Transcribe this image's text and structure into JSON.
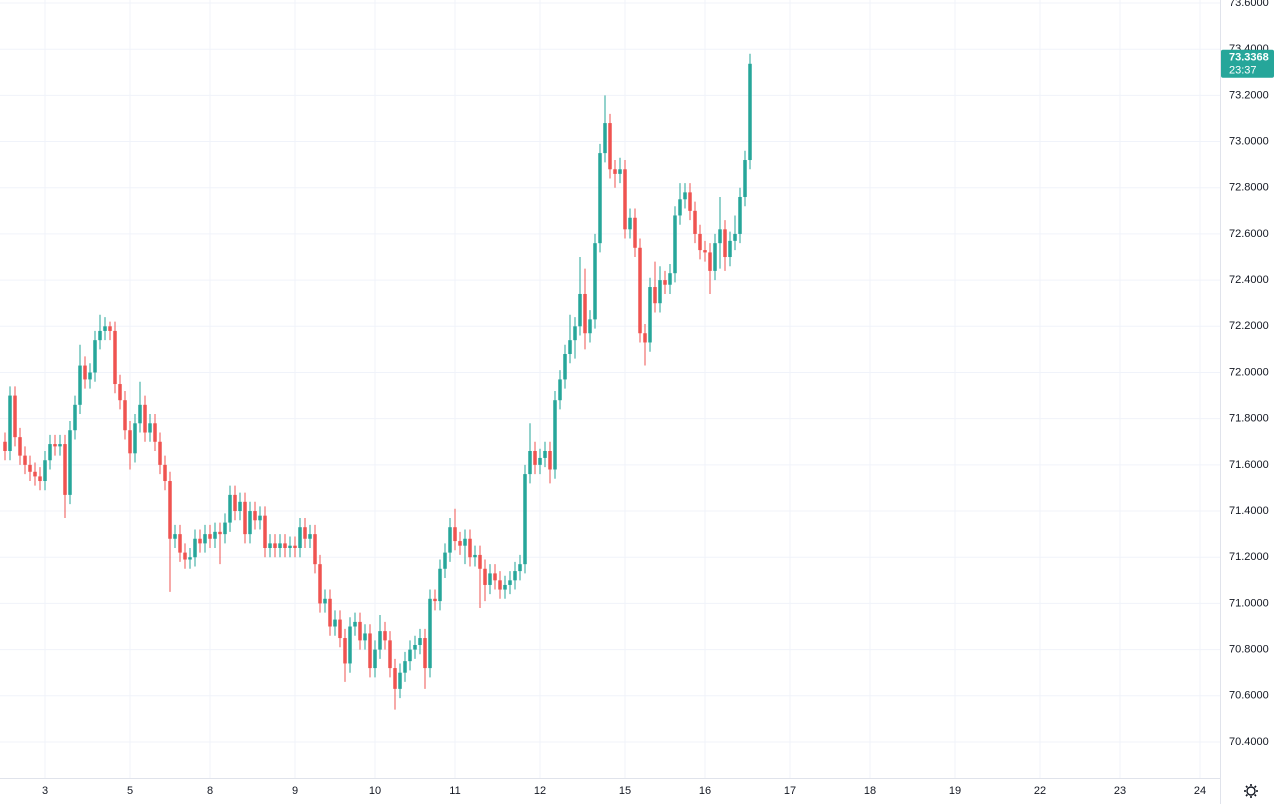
{
  "chart_data": {
    "type": "candlestick",
    "up_color": "#26a69a",
    "down_color": "#ef5350",
    "grid": true,
    "categories": [
      null,
      null,
      null,
      null,
      null,
      null,
      null,
      null,
      null,
      null,
      null,
      null,
      null,
      null,
      null,
      null,
      null,
      null,
      null,
      null,
      null,
      null,
      null,
      null,
      null,
      null,
      null,
      null,
      null,
      null,
      null,
      null,
      null,
      null,
      null,
      null,
      null,
      null,
      null,
      null,
      null,
      null,
      null,
      null,
      null,
      null,
      null,
      null,
      null,
      null,
      null,
      null,
      null,
      null,
      null,
      null,
      null,
      null,
      null,
      null,
      null,
      null,
      null,
      null,
      null,
      null,
      null,
      null,
      null,
      null,
      null,
      null,
      null,
      null,
      null,
      null,
      null,
      null,
      null,
      null,
      null,
      null,
      null,
      null,
      null,
      null,
      null,
      null,
      null,
      null,
      null,
      null,
      null,
      null,
      null,
      null,
      null,
      null,
      null,
      null,
      null,
      null,
      null,
      null,
      null,
      null,
      null,
      null,
      null,
      null,
      null,
      null,
      null,
      null,
      null,
      null,
      null,
      null,
      null,
      null,
      null,
      null,
      null,
      null,
      null,
      null,
      null,
      null,
      null,
      null,
      null,
      null,
      null,
      null,
      null,
      null,
      null,
      null,
      null,
      null,
      null,
      null,
      null,
      null,
      null,
      null,
      null,
      null,
      null,
      null
    ],
    "open": [
      71.7,
      71.66,
      71.9,
      71.72,
      71.64,
      71.6,
      71.57,
      71.55,
      71.53,
      71.62,
      71.69,
      71.68,
      71.69,
      71.47,
      71.75,
      71.86,
      72.03,
      71.97,
      72.0,
      72.14,
      72.18,
      72.2,
      72.18,
      71.95,
      71.88,
      71.75,
      71.65,
      71.78,
      71.86,
      71.74,
      71.78,
      71.7,
      71.6,
      71.53,
      71.28,
      71.3,
      71.22,
      71.19,
      71.2,
      71.28,
      71.26,
      71.3,
      71.28,
      71.31,
      71.3,
      71.35,
      71.47,
      71.4,
      71.44,
      71.3,
      71.4,
      71.36,
      71.38,
      71.24,
      71.26,
      71.24,
      71.26,
      71.24,
      71.25,
      71.24,
      71.33,
      71.28,
      71.3,
      71.17,
      71.0,
      71.02,
      70.9,
      70.93,
      70.85,
      70.74,
      70.9,
      70.92,
      70.84,
      70.87,
      70.72,
      70.8,
      70.88,
      70.84,
      70.72,
      70.63,
      70.7,
      70.75,
      70.8,
      70.82,
      70.85,
      70.72,
      71.02,
      71.01,
      71.15,
      71.22,
      71.33,
      71.27,
      71.25,
      71.28,
      71.2,
      71.21,
      71.15,
      71.08,
      71.13,
      71.1,
      71.06,
      71.08,
      71.1,
      71.14,
      71.17,
      71.56,
      71.66,
      71.6,
      71.63,
      71.66,
      71.58,
      71.88,
      71.97,
      72.08,
      72.14,
      72.2,
      72.34,
      72.17,
      72.23,
      72.56,
      72.95,
      73.08,
      72.88,
      72.86,
      72.88,
      72.62,
      72.67,
      72.54,
      72.17,
      72.13,
      72.37,
      72.3,
      72.4,
      72.38,
      72.43,
      72.68,
      72.75,
      72.78,
      72.7,
      72.6,
      72.53,
      72.52,
      72.44,
      72.56,
      72.62,
      72.5,
      72.57,
      72.6,
      72.76,
      72.92
    ],
    "high": [
      71.74,
      71.94,
      71.94,
      71.76,
      71.68,
      71.64,
      71.61,
      71.59,
      71.66,
      71.73,
      71.73,
      71.73,
      71.73,
      71.79,
      71.9,
      72.12,
      72.07,
      72.04,
      72.18,
      72.25,
      72.24,
      72.22,
      72.22,
      71.99,
      71.92,
      71.79,
      71.82,
      71.96,
      71.9,
      71.82,
      71.82,
      71.74,
      71.64,
      71.57,
      71.34,
      71.34,
      71.26,
      71.24,
      71.32,
      71.32,
      71.34,
      71.34,
      71.35,
      71.35,
      71.39,
      71.51,
      71.51,
      71.48,
      71.48,
      71.44,
      71.44,
      71.42,
      71.42,
      71.3,
      71.3,
      71.3,
      71.3,
      71.29,
      71.29,
      71.37,
      71.37,
      71.34,
      71.34,
      71.21,
      71.06,
      71.06,
      70.97,
      70.97,
      70.89,
      70.94,
      70.96,
      70.96,
      70.91,
      70.91,
      70.84,
      70.95,
      70.92,
      70.88,
      70.76,
      70.74,
      70.79,
      70.84,
      70.86,
      70.89,
      70.89,
      71.06,
      71.06,
      71.19,
      71.26,
      71.37,
      71.41,
      71.31,
      71.32,
      71.32,
      71.25,
      71.25,
      71.19,
      71.17,
      71.17,
      71.14,
      71.12,
      71.14,
      71.18,
      71.21,
      71.6,
      71.78,
      71.7,
      71.67,
      71.7,
      71.7,
      71.92,
      72.01,
      72.12,
      72.25,
      72.24,
      72.5,
      72.45,
      72.27,
      72.6,
      72.99,
      73.2,
      73.12,
      72.92,
      72.93,
      72.92,
      72.71,
      72.71,
      72.58,
      72.21,
      72.41,
      72.48,
      72.46,
      72.44,
      72.47,
      72.72,
      72.82,
      72.82,
      72.82,
      72.74,
      72.64,
      72.57,
      72.56,
      72.6,
      72.76,
      72.66,
      72.61,
      72.68,
      72.8,
      72.96,
      73.38
    ],
    "low": [
      71.62,
      71.62,
      71.68,
      71.6,
      71.56,
      71.53,
      71.51,
      71.49,
      71.49,
      71.58,
      71.64,
      71.64,
      71.37,
      71.43,
      71.71,
      71.82,
      71.93,
      71.93,
      71.96,
      72.1,
      72.14,
      72.14,
      71.91,
      71.84,
      71.71,
      71.58,
      71.61,
      71.74,
      71.7,
      71.7,
      71.66,
      71.56,
      71.49,
      71.05,
      71.24,
      71.18,
      71.15,
      71.15,
      71.16,
      71.22,
      71.22,
      71.24,
      71.24,
      71.17,
      71.26,
      71.31,
      71.36,
      71.36,
      71.26,
      71.26,
      71.32,
      71.32,
      71.2,
      71.2,
      71.2,
      71.2,
      71.2,
      71.2,
      71.2,
      71.2,
      71.24,
      71.24,
      71.13,
      70.96,
      70.96,
      70.86,
      70.86,
      70.81,
      70.66,
      70.7,
      70.86,
      70.8,
      70.8,
      70.68,
      70.68,
      70.76,
      70.8,
      70.68,
      70.54,
      70.59,
      70.66,
      70.71,
      70.76,
      70.78,
      70.63,
      70.68,
      70.97,
      70.97,
      71.11,
      71.18,
      71.23,
      71.21,
      71.17,
      71.16,
      71.16,
      70.98,
      71.01,
      71.04,
      71.06,
      71.02,
      71.02,
      71.04,
      71.06,
      71.1,
      71.13,
      71.52,
      71.56,
      71.56,
      71.59,
      71.52,
      71.54,
      71.84,
      71.93,
      72.04,
      72.06,
      72.16,
      72.1,
      72.13,
      72.19,
      72.52,
      72.91,
      72.84,
      72.8,
      72.82,
      72.58,
      72.58,
      72.5,
      72.13,
      72.03,
      72.09,
      72.26,
      72.26,
      72.34,
      72.34,
      72.39,
      72.64,
      72.71,
      72.66,
      72.56,
      72.49,
      72.48,
      72.34,
      72.4,
      72.45,
      72.44,
      72.46,
      72.53,
      72.56,
      72.72,
      72.88
    ],
    "close": [
      71.66,
      71.9,
      71.72,
      71.64,
      71.6,
      71.57,
      71.55,
      71.53,
      71.62,
      71.69,
      71.68,
      71.69,
      71.47,
      71.75,
      71.86,
      72.03,
      71.97,
      72.0,
      72.14,
      72.18,
      72.2,
      72.18,
      71.95,
      71.88,
      71.75,
      71.65,
      71.78,
      71.86,
      71.74,
      71.78,
      71.7,
      71.6,
      71.53,
      71.28,
      71.3,
      71.22,
      71.19,
      71.2,
      71.28,
      71.26,
      71.3,
      71.28,
      71.31,
      71.3,
      71.35,
      71.47,
      71.4,
      71.44,
      71.3,
      71.4,
      71.36,
      71.38,
      71.24,
      71.26,
      71.24,
      71.26,
      71.24,
      71.25,
      71.24,
      71.33,
      71.28,
      71.3,
      71.17,
      71.0,
      71.02,
      70.9,
      70.93,
      70.85,
      70.74,
      70.9,
      70.92,
      70.84,
      70.87,
      70.72,
      70.8,
      70.88,
      70.84,
      70.72,
      70.63,
      70.7,
      70.75,
      70.8,
      70.82,
      70.85,
      70.72,
      71.02,
      71.01,
      71.15,
      71.22,
      71.33,
      71.27,
      71.25,
      71.28,
      71.2,
      71.21,
      71.15,
      71.08,
      71.13,
      71.1,
      71.06,
      71.08,
      71.1,
      71.14,
      71.17,
      71.56,
      71.66,
      71.6,
      71.63,
      71.66,
      71.58,
      71.88,
      71.97,
      72.08,
      72.14,
      72.2,
      72.34,
      72.17,
      72.23,
      72.56,
      72.95,
      73.08,
      72.88,
      72.86,
      72.88,
      72.62,
      72.67,
      72.54,
      72.17,
      72.13,
      72.37,
      72.3,
      72.4,
      72.38,
      72.43,
      72.68,
      72.75,
      72.78,
      72.7,
      72.6,
      72.53,
      72.52,
      72.44,
      72.56,
      72.62,
      72.5,
      72.57,
      72.6,
      72.76,
      72.92,
      73.3368
    ],
    "last_price": {
      "label": "73.3368",
      "countdown": "23:37"
    },
    "xlim": [
      -1,
      243
    ],
    "xticks": [
      {
        "value": 8,
        "label": "3"
      },
      {
        "value": 25,
        "label": "5"
      },
      {
        "value": 41,
        "label": "8"
      },
      {
        "value": 58,
        "label": "9"
      },
      {
        "value": 74,
        "label": "10"
      },
      {
        "value": 90,
        "label": "11"
      },
      {
        "value": 107,
        "label": "12"
      },
      {
        "value": 124,
        "label": "15"
      },
      {
        "value": 140,
        "label": "16"
      },
      {
        "value": 157,
        "label": "17"
      },
      {
        "value": 173,
        "label": "18"
      },
      {
        "value": 190,
        "label": "19"
      },
      {
        "value": 207,
        "label": "22"
      },
      {
        "value": 223,
        "label": "23"
      },
      {
        "value": 239,
        "label": "24"
      }
    ],
    "ylim": [
      70.244,
      73.613
    ],
    "yticks": [
      {
        "value": 70.4,
        "label": "70.4000"
      },
      {
        "value": 70.6,
        "label": "70.6000"
      },
      {
        "value": 70.8,
        "label": "70.8000"
      },
      {
        "value": 71.0,
        "label": "71.0000"
      },
      {
        "value": 71.2,
        "label": "71.2000"
      },
      {
        "value": 71.4,
        "label": "71.4000"
      },
      {
        "value": 71.6,
        "label": "71.6000"
      },
      {
        "value": 71.8,
        "label": "71.8000"
      },
      {
        "value": 72.0,
        "label": "72.0000"
      },
      {
        "value": 72.2,
        "label": "72.2000"
      },
      {
        "value": 72.4,
        "label": "72.4000"
      },
      {
        "value": 72.6,
        "label": "72.6000"
      },
      {
        "value": 72.8,
        "label": "72.8000"
      },
      {
        "value": 73.0,
        "label": "73.0000"
      },
      {
        "value": 73.2,
        "label": "73.2000"
      },
      {
        "value": 73.4,
        "label": "73.4000"
      },
      {
        "value": 73.6,
        "label": "73.6000"
      }
    ]
  }
}
